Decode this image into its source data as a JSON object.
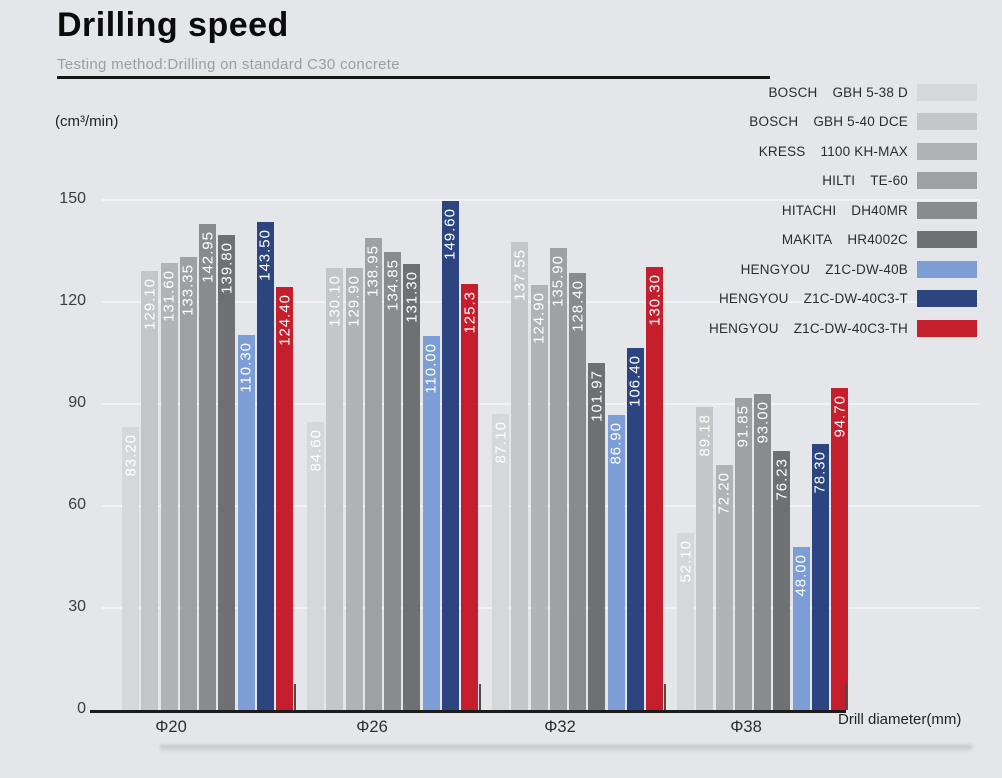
{
  "header": {
    "title": "Drilling speed",
    "subtitle": "Testing method:Drilling on standard C30 concrete"
  },
  "chart_data": {
    "type": "bar",
    "title": "Drilling speed",
    "unit_label": "(cm³/min)",
    "xlabel": "Drill diameter(mm)",
    "categories": [
      "Φ20",
      "Φ26",
      "Φ32",
      "Φ38"
    ],
    "ylim": [
      0,
      150
    ],
    "yticks": [
      0,
      30,
      60,
      90,
      120,
      150
    ],
    "grid": true,
    "legend_position": "top-right",
    "series": [
      {
        "brand": "BOSCH",
        "model": "GBH 5-38 D",
        "color": "#d6d7d9",
        "values": [
          83.2,
          84.6,
          87.1,
          52.1
        ],
        "labels": [
          "83.20",
          "84.60",
          "87.10",
          "52.10"
        ]
      },
      {
        "brand": "BOSCH",
        "model": "GBH 5-40 DCE",
        "color": "#c5c6c8",
        "values": [
          129.1,
          130.1,
          137.55,
          89.18
        ],
        "labels": [
          "129.10",
          "130.10",
          "137.55",
          "89.18"
        ]
      },
      {
        "brand": "KRESS",
        "model": "1100 KH-MAX",
        "color": "#b2b3b5",
        "values": [
          131.6,
          129.9,
          124.9,
          72.2
        ],
        "labels": [
          "131.60",
          "129.90",
          "124.90",
          "72.20"
        ]
      },
      {
        "brand": "HILTI",
        "model": "TE-60",
        "color": "#9ea0a2",
        "values": [
          133.35,
          138.95,
          135.9,
          91.85
        ],
        "labels": [
          "133.35",
          "138.95",
          "135.90",
          "91.85"
        ]
      },
      {
        "brand": "HITACHI",
        "model": "DH40MR",
        "color": "#8a8b8e",
        "values": [
          142.95,
          134.85,
          128.4,
          93.0
        ],
        "labels": [
          "142.95",
          "134.85",
          "128.40",
          "93.00"
        ]
      },
      {
        "brand": "MAKITA",
        "model": "HR4002C",
        "color": "#6f7073",
        "values": [
          139.8,
          131.3,
          101.97,
          76.23
        ],
        "labels": [
          "139.80",
          "131.30",
          "101.97",
          "76.23"
        ]
      },
      {
        "brand": "HENGYOU",
        "model": "Z1C-DW-40B",
        "color": "#7d9dd6",
        "values": [
          110.3,
          110.0,
          86.9,
          48.0
        ],
        "labels": [
          "110.30",
          "110.00",
          "86.90",
          "48.00"
        ]
      },
      {
        "brand": "HENGYOU",
        "model": "Z1C-DW-40C3-T",
        "color": "#2c4580",
        "values": [
          143.5,
          149.6,
          106.4,
          78.3
        ],
        "labels": [
          "143.50",
          "149.60",
          "106.40",
          "78.30"
        ]
      },
      {
        "brand": "HENGYOU",
        "model": "Z1C-DW-40C3-TH",
        "color": "#c51f2e",
        "values": [
          124.4,
          125.3,
          130.3,
          94.7
        ],
        "labels": [
          "124.40",
          "125.3",
          "130.30",
          "94.70"
        ]
      }
    ]
  }
}
